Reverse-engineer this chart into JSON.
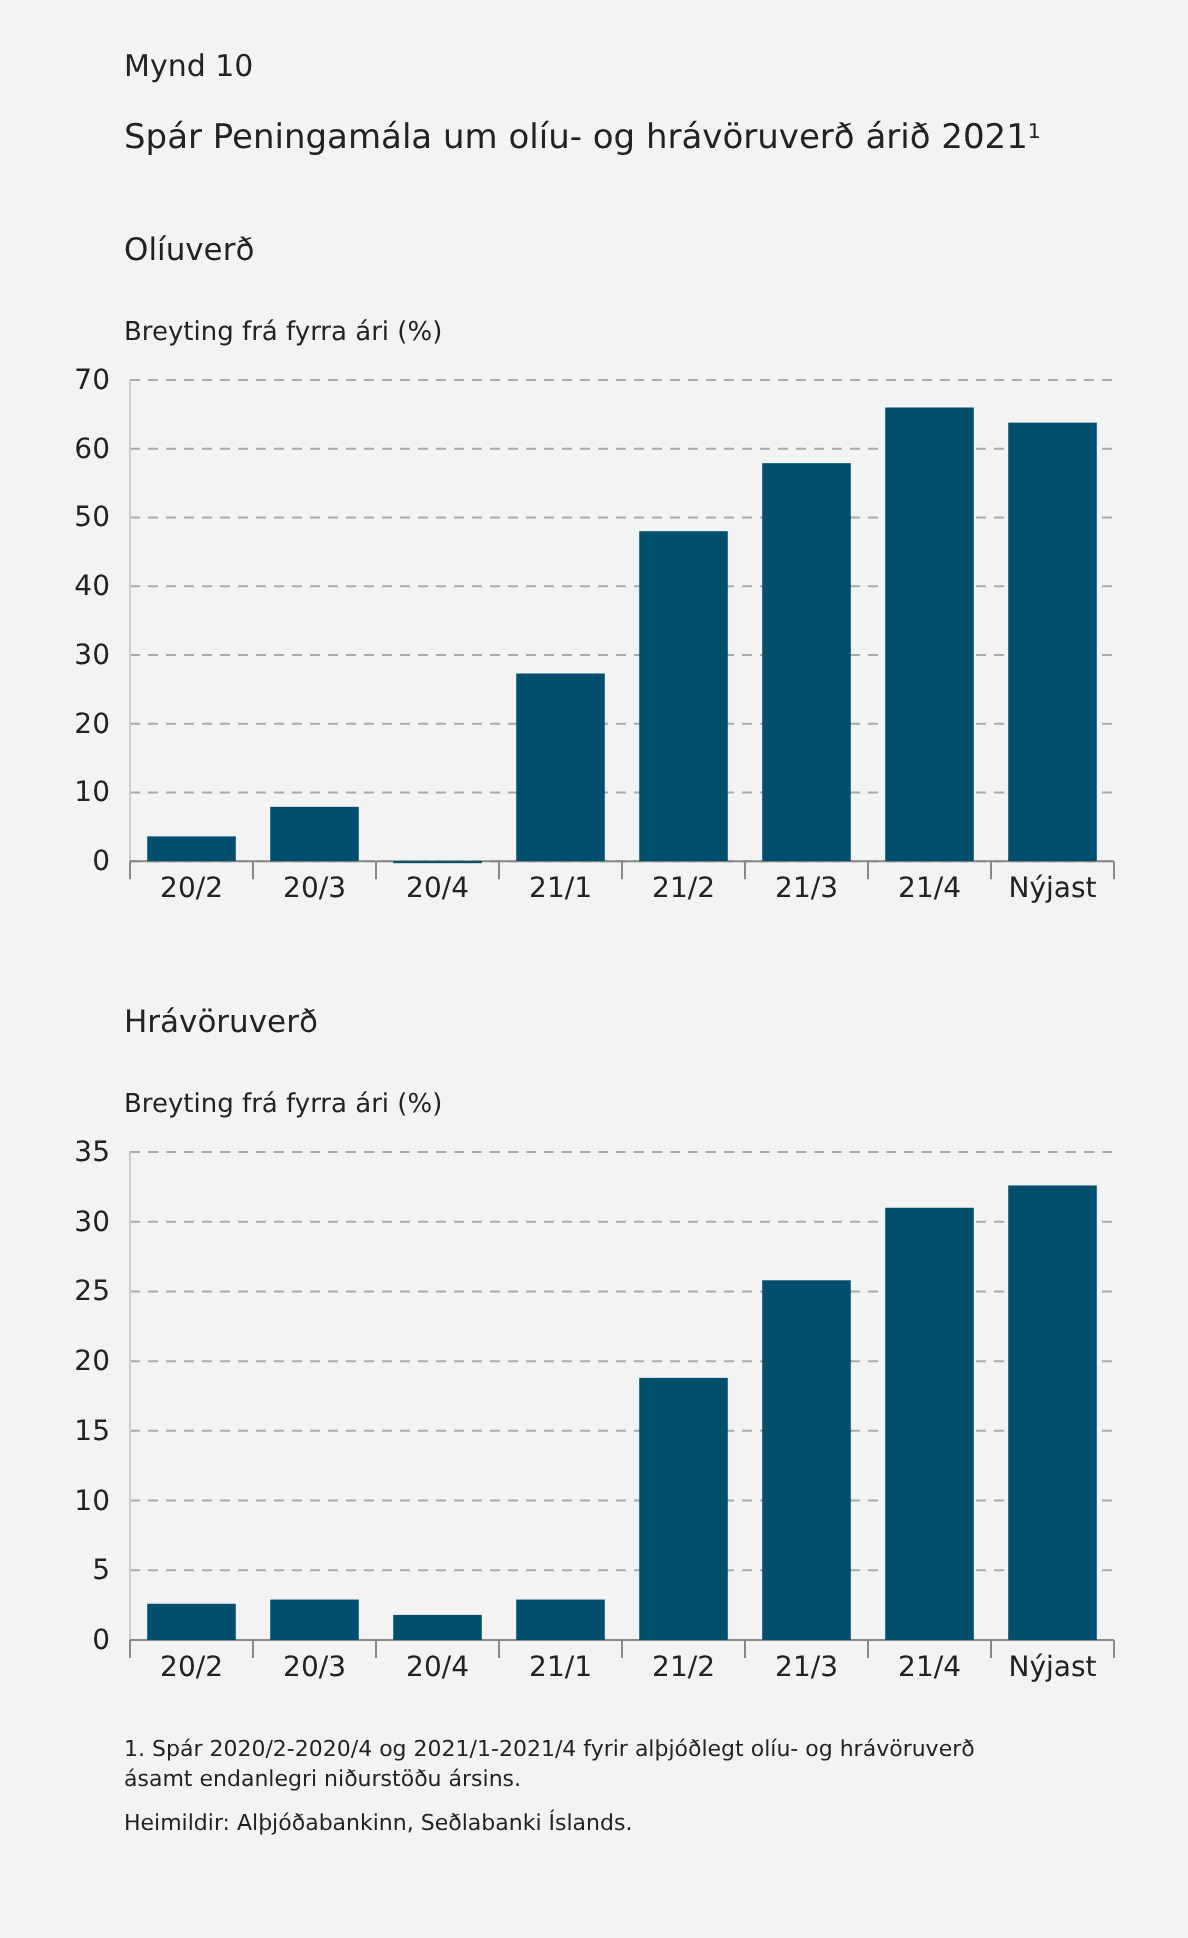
{
  "chart_data": [
    {
      "type": "other",
      "subtitle": "Mynd 10",
      "title": "Spár Peningamála um olíu- og hrávöruverð árið 2021$^{1}$"
    },
    {
      "type": "bar",
      "title": "Olíuverð",
      "ylabel": "Breyting frá fyrra ári (%)",
      "categories": [
        "20/2",
        "20/3",
        "20/4",
        "21/1",
        "21/2",
        "21/3",
        "21/4",
        "Nýjast"
      ],
      "values": [
        3.6,
        7.9,
        -0.3,
        27.3,
        48.0,
        57.9,
        66.0,
        63.8
      ],
      "color": "#004f6e",
      "ylim": [
        -1,
        70
      ],
      "yticks": [
        0,
        10,
        20,
        30,
        40,
        50,
        60,
        70
      ],
      "grid": "y"
    },
    {
      "type": "bar",
      "title": "Hrávöruverð",
      "ylabel": "Breyting frá fyrra ári (%)",
      "categories": [
        "20/2",
        "20/3",
        "20/4",
        "21/1",
        "21/2",
        "21/3",
        "21/4",
        "Nýjast"
      ],
      "values": [
        2.6,
        2.9,
        1.8,
        2.9,
        18.8,
        25.8,
        31.0,
        32.6
      ],
      "color": "#004f6e",
      "ylim": [
        0,
        35
      ],
      "yticks": [
        0,
        5,
        10,
        15,
        20,
        25,
        30,
        35
      ],
      "grid": "y",
      "annotations": [
        "1. Spár 2020/2-2020/4 og 2021/1-2021/4 fyrir alþjóðlegt olíu- og hrávöruverð ásamt endanlegri niðurstöðu ársins.",
        "Heimildir: Alþjóðabankinn, Seðlabanki Íslands."
      ]
    }
  ]
}
